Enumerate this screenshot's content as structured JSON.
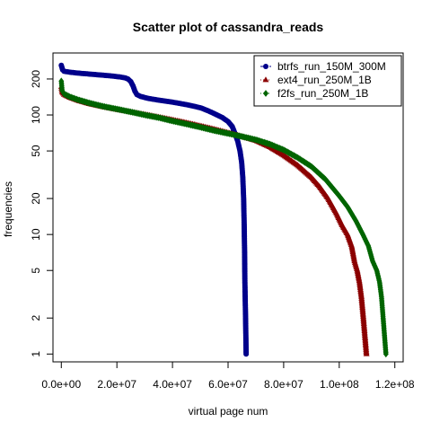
{
  "chart_data": {
    "type": "scatter",
    "title": "Scatter plot of cassandra_reads",
    "xlabel": "virtual page num",
    "ylabel": "frequencies",
    "xlim": [
      -3000000,
      123000000
    ],
    "ylim": [
      0.86,
      330
    ],
    "y_scale": "log",
    "grid": false,
    "legend_position": "top-right",
    "x_ticks": [
      {
        "value": 0,
        "label": "0.0e+00"
      },
      {
        "value": 20000000,
        "label": "2.0e+07"
      },
      {
        "value": 40000000,
        "label": "4.0e+07"
      },
      {
        "value": 60000000,
        "label": "6.0e+07"
      },
      {
        "value": 80000000,
        "label": "8.0e+07"
      },
      {
        "value": 100000000,
        "label": "1.0e+08"
      },
      {
        "value": 120000000,
        "label": "1.2e+08"
      }
    ],
    "y_ticks": [
      {
        "value": 1,
        "label": "1"
      },
      {
        "value": 2,
        "label": "2"
      },
      {
        "value": 5,
        "label": "5"
      },
      {
        "value": 10,
        "label": "10"
      },
      {
        "value": 20,
        "label": "20"
      },
      {
        "value": 50,
        "label": "50"
      },
      {
        "value": 100,
        "label": "100"
      },
      {
        "value": 200,
        "label": "200"
      }
    ],
    "series": [
      {
        "name": "btrfs_run_150M_300M",
        "color": "#00008b",
        "marker": "circle",
        "line": "dashed",
        "points": [
          [
            0,
            260
          ],
          [
            500000,
            238
          ],
          [
            1000000,
            232
          ],
          [
            3000000,
            228
          ],
          [
            6000000,
            224
          ],
          [
            10000000,
            220
          ],
          [
            14000000,
            216
          ],
          [
            18000000,
            212
          ],
          [
            21000000,
            208
          ],
          [
            23000000,
            204
          ],
          [
            24000000,
            200
          ],
          [
            25000000,
            190
          ],
          [
            25800000,
            175
          ],
          [
            26500000,
            158
          ],
          [
            27200000,
            148
          ],
          [
            28500000,
            143
          ],
          [
            31000000,
            138
          ],
          [
            35000000,
            133
          ],
          [
            40000000,
            128
          ],
          [
            45000000,
            122
          ],
          [
            50000000,
            115
          ],
          [
            53000000,
            108
          ],
          [
            56000000,
            100
          ],
          [
            58000000,
            95
          ],
          [
            60000000,
            88
          ],
          [
            61500000,
            80
          ],
          [
            62500000,
            70
          ],
          [
            63500000,
            60
          ],
          [
            64300000,
            50
          ],
          [
            64900000,
            40
          ],
          [
            65300000,
            30
          ],
          [
            65600000,
            20
          ],
          [
            65800000,
            12
          ],
          [
            65950000,
            7
          ],
          [
            66050000,
            4
          ],
          [
            66150000,
            3
          ],
          [
            66300000,
            2
          ],
          [
            66500000,
            1
          ]
        ]
      },
      {
        "name": "ext4_run_250M_1B",
        "color": "#8b0000",
        "marker": "triangle",
        "line": "dotted",
        "points": [
          [
            0,
            172
          ],
          [
            300000,
            155
          ],
          [
            1000000,
            148
          ],
          [
            3000000,
            140
          ],
          [
            6000000,
            132
          ],
          [
            10000000,
            124
          ],
          [
            15000000,
            117
          ],
          [
            20000000,
            111
          ],
          [
            25000000,
            106
          ],
          [
            30000000,
            101
          ],
          [
            35000000,
            96
          ],
          [
            40000000,
            91
          ],
          [
            45000000,
            86
          ],
          [
            50000000,
            81
          ],
          [
            55000000,
            76
          ],
          [
            60000000,
            71
          ],
          [
            65000000,
            66
          ],
          [
            70000000,
            61
          ],
          [
            75000000,
            54
          ],
          [
            80000000,
            46
          ],
          [
            85000000,
            38
          ],
          [
            90000000,
            30
          ],
          [
            93000000,
            25
          ],
          [
            96000000,
            20
          ],
          [
            99000000,
            15
          ],
          [
            101000000,
            12
          ],
          [
            103000000,
            10
          ],
          [
            104500000,
            8
          ],
          [
            105500000,
            6
          ],
          [
            106500000,
            5
          ],
          [
            107300000,
            4
          ],
          [
            108000000,
            3
          ],
          [
            108700000,
            2
          ],
          [
            109800000,
            1
          ]
        ]
      },
      {
        "name": "f2fs_run_250M_1B",
        "color": "#006400",
        "marker": "diamond",
        "line": "dotted",
        "points": [
          [
            0,
            192
          ],
          [
            300000,
            160
          ],
          [
            1000000,
            150
          ],
          [
            3000000,
            142
          ],
          [
            6000000,
            134
          ],
          [
            10000000,
            126
          ],
          [
            15000000,
            118
          ],
          [
            20000000,
            112
          ],
          [
            25000000,
            106
          ],
          [
            30000000,
            100
          ],
          [
            35000000,
            95
          ],
          [
            40000000,
            89
          ],
          [
            45000000,
            84
          ],
          [
            50000000,
            79
          ],
          [
            55000000,
            74
          ],
          [
            60000000,
            70
          ],
          [
            65000000,
            66
          ],
          [
            70000000,
            62
          ],
          [
            75000000,
            57
          ],
          [
            80000000,
            51
          ],
          [
            85000000,
            44
          ],
          [
            90000000,
            37
          ],
          [
            95000000,
            29
          ],
          [
            100000000,
            21
          ],
          [
            103000000,
            17
          ],
          [
            106000000,
            13
          ],
          [
            108500000,
            10
          ],
          [
            110500000,
            8
          ],
          [
            112000000,
            6
          ],
          [
            113500000,
            5
          ],
          [
            114500000,
            4
          ],
          [
            115200000,
            3
          ],
          [
            115800000,
            2
          ],
          [
            116800000,
            1
          ]
        ]
      }
    ]
  }
}
